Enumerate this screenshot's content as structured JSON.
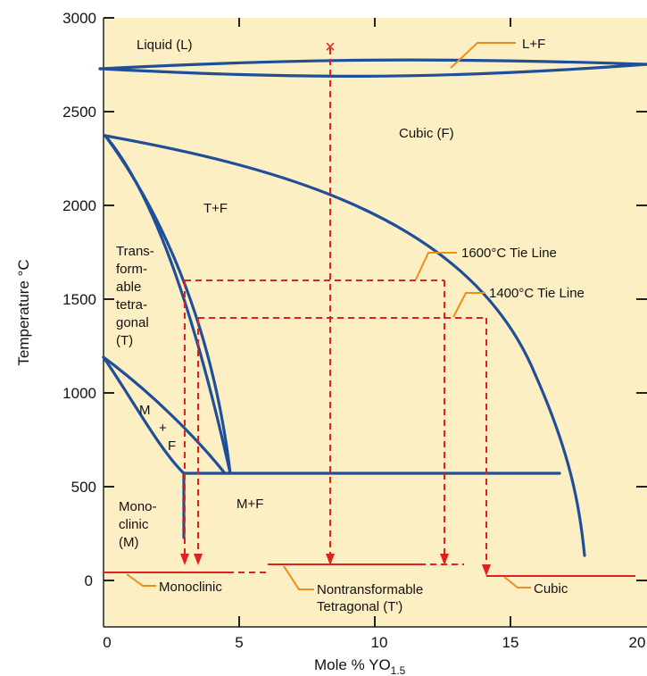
{
  "colors": {
    "background": "#fcefc3",
    "phase_boundary": "#1f4f99",
    "tie_line": "#e0201c",
    "leader": "#f08c1a"
  },
  "axes": {
    "x_label": "Mole % YO",
    "x_label_sub": "1.5",
    "y_label": "Temperature °C",
    "x_range": [
      0,
      20
    ],
    "y_range": [
      -250,
      3000
    ],
    "x_ticks": [
      "0",
      "5",
      "10",
      "15",
      "20"
    ],
    "y_ticks": [
      "0",
      "500",
      "1000",
      "1500",
      "2000",
      "2500",
      "3000"
    ]
  },
  "regions": {
    "liquid": "Liquid (L)",
    "cubic": "Cubic (F)",
    "t_plus_f": "T+F",
    "transformable": [
      "Trans-",
      "form-",
      "able",
      "tetra-",
      "gonal",
      "(T)"
    ],
    "m_plus_f_small": [
      "M",
      "+",
      "F"
    ],
    "monoclinic": [
      "Mono-",
      "clinic",
      "(M)"
    ],
    "m_plus_f": "M+F"
  },
  "callouts": {
    "l_plus_f": "L+F",
    "tie_1600": "1600°C Tie Line",
    "tie_1400": "1400°C Tie Line",
    "monoclinic": "Monoclinic",
    "nontransformable": [
      "Nontransformable",
      "Tetragonal (T')"
    ],
    "cubic": "Cubic"
  },
  "markers": {
    "composition": "×"
  }
}
